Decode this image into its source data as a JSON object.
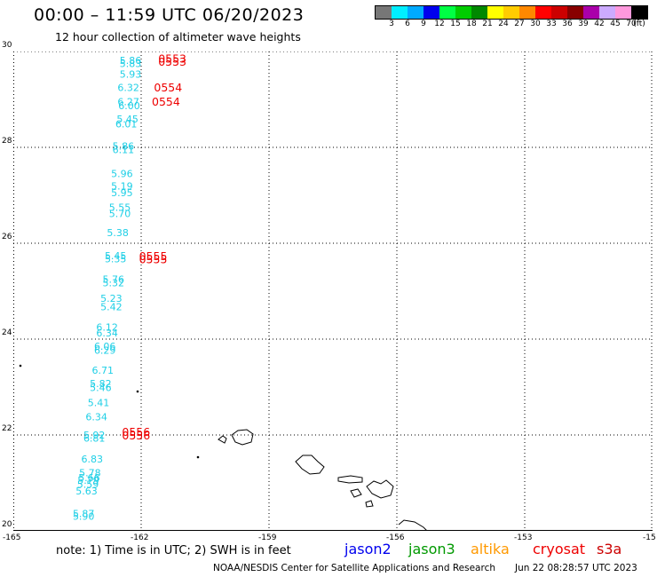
{
  "header": {
    "title": "00:00 – 11:59 UTC 06/20/2023",
    "subtitle": "12 hour collection of altimeter wave heights"
  },
  "legend": {
    "unit": "(ft)",
    "colors": [
      "#777777",
      "#00eeff",
      "#00aaff",
      "#0000ee",
      "#00ff44",
      "#00cc00",
      "#008800",
      "#ffff00",
      "#ffcc00",
      "#ff8800",
      "#ff0000",
      "#cc0000",
      "#880000",
      "#aa00aa",
      "#ccaaff",
      "#ff99dd",
      "#000000"
    ],
    "ticks": [
      "3",
      "6",
      "9",
      "12",
      "15",
      "18",
      "21",
      "24",
      "27",
      "30",
      "33",
      "36",
      "39",
      "42",
      "45",
      "70"
    ]
  },
  "map": {
    "lat_labels": [
      "30",
      "28",
      "26",
      "24",
      "22",
      "20"
    ],
    "lon_labels": [
      "-165",
      "-162",
      "-159",
      "-156",
      "-153",
      "-15"
    ],
    "wave_heights": [
      {
        "lon": -162.25,
        "lat": 29.74,
        "value": "5.86"
      },
      {
        "lon": -162.25,
        "lat": 29.68,
        "value": "5.83"
      },
      {
        "lon": -162.25,
        "lat": 29.45,
        "value": "5.93"
      },
      {
        "lon": -162.3,
        "lat": 29.18,
        "value": "6.32"
      },
      {
        "lon": -162.3,
        "lat": 28.88,
        "value": "6.27"
      },
      {
        "lon": -162.28,
        "lat": 28.8,
        "value": "6.00"
      },
      {
        "lon": -162.32,
        "lat": 28.52,
        "value": "5.45"
      },
      {
        "lon": -162.35,
        "lat": 28.42,
        "value": "6.01"
      },
      {
        "lon": -162.42,
        "lat": 27.95,
        "value": "5.86"
      },
      {
        "lon": -162.42,
        "lat": 27.88,
        "value": "6.11"
      },
      {
        "lon": -162.45,
        "lat": 27.38,
        "value": "5.96"
      },
      {
        "lon": -162.45,
        "lat": 27.12,
        "value": "5.19"
      },
      {
        "lon": -162.45,
        "lat": 26.98,
        "value": "5.95"
      },
      {
        "lon": -162.5,
        "lat": 26.68,
        "value": "5.55"
      },
      {
        "lon": -162.5,
        "lat": 26.55,
        "value": "5.70"
      },
      {
        "lon": -162.55,
        "lat": 26.15,
        "value": "5.38"
      },
      {
        "lon": -162.6,
        "lat": 25.67,
        "value": "5.45"
      },
      {
        "lon": -162.6,
        "lat": 25.6,
        "value": "5.35"
      },
      {
        "lon": -162.65,
        "lat": 25.18,
        "value": "5.76"
      },
      {
        "lon": -162.65,
        "lat": 25.1,
        "value": "5.32"
      },
      {
        "lon": -162.7,
        "lat": 24.78,
        "value": "5.23"
      },
      {
        "lon": -162.7,
        "lat": 24.6,
        "value": "5.42"
      },
      {
        "lon": -162.8,
        "lat": 24.18,
        "value": "6.12"
      },
      {
        "lon": -162.8,
        "lat": 24.06,
        "value": "6.34"
      },
      {
        "lon": -162.85,
        "lat": 23.78,
        "value": "6.06"
      },
      {
        "lon": -162.85,
        "lat": 23.69,
        "value": "6.29"
      },
      {
        "lon": -162.9,
        "lat": 23.28,
        "value": "6.71"
      },
      {
        "lon": -162.95,
        "lat": 23.0,
        "value": "5.82"
      },
      {
        "lon": -162.95,
        "lat": 22.92,
        "value": "5.46"
      },
      {
        "lon": -163.0,
        "lat": 22.6,
        "value": "5.41"
      },
      {
        "lon": -163.05,
        "lat": 22.31,
        "value": "6.34"
      },
      {
        "lon": -163.1,
        "lat": 21.93,
        "value": "5.92"
      },
      {
        "lon": -163.1,
        "lat": 21.86,
        "value": "6.81"
      },
      {
        "lon": -163.15,
        "lat": 21.43,
        "value": "6.83"
      },
      {
        "lon": -163.2,
        "lat": 21.14,
        "value": "5.78"
      },
      {
        "lon": -163.22,
        "lat": 21.04,
        "value": "5.66"
      },
      {
        "lon": -163.24,
        "lat": 20.98,
        "value": "5.79"
      },
      {
        "lon": -163.25,
        "lat": 20.9,
        "value": "5.59"
      },
      {
        "lon": -163.28,
        "lat": 20.76,
        "value": "5.63"
      },
      {
        "lon": -163.35,
        "lat": 20.29,
        "value": "5.87"
      },
      {
        "lon": -163.35,
        "lat": 20.23,
        "value": "5.90"
      }
    ],
    "pass_times": [
      {
        "lon": -161.6,
        "lat": 29.77,
        "value": "0553"
      },
      {
        "lon": -161.6,
        "lat": 29.7,
        "value": "0553"
      },
      {
        "lon": -161.7,
        "lat": 29.17,
        "value": "0554"
      },
      {
        "lon": -161.75,
        "lat": 28.87,
        "value": "0554"
      },
      {
        "lon": -162.05,
        "lat": 25.65,
        "value": "0555"
      },
      {
        "lon": -162.05,
        "lat": 25.58,
        "value": "0555"
      },
      {
        "lon": -162.45,
        "lat": 21.98,
        "value": "0556"
      },
      {
        "lon": -162.45,
        "lat": 21.91,
        "value": "0556"
      }
    ]
  },
  "footer": {
    "note": "note: 1) Time is in UTC; 2) SWH is in feet",
    "satellites": [
      {
        "name": "jason2",
        "color": "#0000ee"
      },
      {
        "name": "jason3",
        "color": "#009900"
      },
      {
        "name": "altika",
        "color": "#ff9900"
      },
      {
        "name": "cryosat",
        "color": "#ee0000"
      },
      {
        "name": "s3a",
        "color": "#cc0000"
      }
    ],
    "credit": "NOAA/NESDIS Center for Satellite Applications and Research",
    "timestamp": "Jun 22 08:28:57 UTC 2023"
  }
}
